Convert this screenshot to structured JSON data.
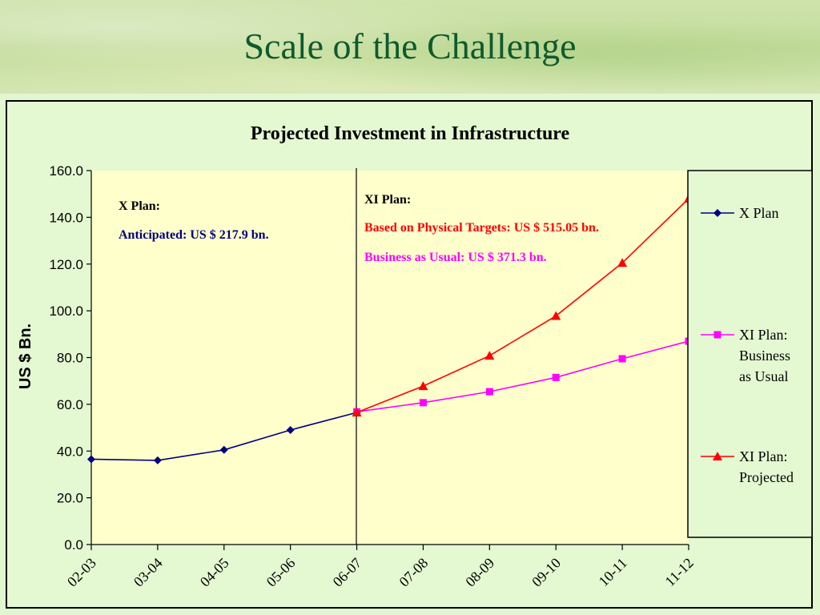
{
  "slide": {
    "title": "Scale of the Challenge"
  },
  "chart_data": {
    "type": "line",
    "title": "Projected Investment in Infrastructure",
    "ylabel": "US $ Bn.",
    "xlabel": "",
    "ylim": [
      0,
      160
    ],
    "y_ticks": [
      "0.0",
      "20.0",
      "40.0",
      "60.0",
      "80.0",
      "100.0",
      "120.0",
      "140.0",
      "160.0"
    ],
    "categories": [
      "02-03",
      "03-04",
      "04-05",
      "05-06",
      "06-07",
      "07-08",
      "08-09",
      "09-10",
      "10-11",
      "11-12"
    ],
    "series": [
      {
        "name": "X Plan",
        "color": "#000080",
        "marker": "diamond",
        "values": [
          36.5,
          36.0,
          40.5,
          49.0,
          56.5,
          null,
          null,
          null,
          null,
          null
        ]
      },
      {
        "name": "XI Plan: Business as Usual",
        "color": "#ff00ff",
        "marker": "square",
        "values": [
          null,
          null,
          null,
          null,
          56.8,
          60.7,
          65.4,
          71.5,
          79.5,
          87.0
        ]
      },
      {
        "name": "XI Plan: Projected",
        "color": "#ff0000",
        "marker": "triangle",
        "values": [
          null,
          null,
          null,
          null,
          56.5,
          67.8,
          80.8,
          97.8,
          120.5,
          148.0
        ]
      }
    ],
    "legend_position": "right",
    "grid": false,
    "annotations": {
      "x_plan_title": "X Plan:",
      "x_plan_value": "Anticipated: US $ 217.9 bn.",
      "xi_plan_title": "XI Plan:",
      "xi_plan_physical": "Based on Physical Targets: US $ 515.05 bn.",
      "xi_plan_bau": "Business as Usual: US $ 371.3 bn."
    },
    "legend_labels": [
      [
        "X Plan"
      ],
      [
        "XI Plan:",
        "Business",
        "as Usual"
      ],
      [
        "XI Plan:",
        "Projected"
      ]
    ]
  }
}
